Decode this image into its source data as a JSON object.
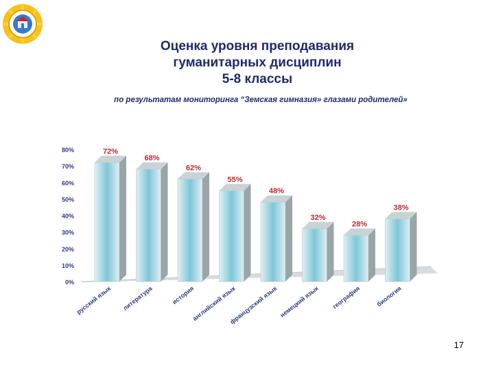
{
  "slide": {
    "title_lines": [
      "Оценка уровня преподавания",
      "гуманитарных дисциплин",
      "5-8 классы"
    ],
    "subtitle": "по результатам  мониторинга “Земская гимназия» глазами родителей»",
    "page_number": "17",
    "logo_icon": "school-emblem-icon"
  },
  "colors": {
    "title": "#1f2a6b",
    "axis_text": "#2c3c84",
    "data_label": "#c0282d",
    "bar_front_edge": "#dfeff4",
    "bar_front_center": "#7fc6d8",
    "bar_side": "#9aa5a8",
    "bar_top": "#c9d2d4",
    "floor": "#d8dcde"
  },
  "chart_data": {
    "type": "bar",
    "categories": [
      "русский язык",
      "литература",
      "история",
      "английский язык",
      "французский язык",
      "немецкий язык",
      "география",
      "биология"
    ],
    "values": [
      72,
      68,
      62,
      55,
      48,
      32,
      28,
      38
    ],
    "data_labels": [
      "72%",
      "68%",
      "62%",
      "55%",
      "48%",
      "32%",
      "28%",
      "38%"
    ],
    "y_ticks": [
      "0%",
      "10%",
      "20%",
      "30%",
      "40%",
      "50%",
      "60%",
      "70%",
      "80%"
    ],
    "ylim": [
      0,
      80
    ],
    "grid": false,
    "legend": "none"
  }
}
